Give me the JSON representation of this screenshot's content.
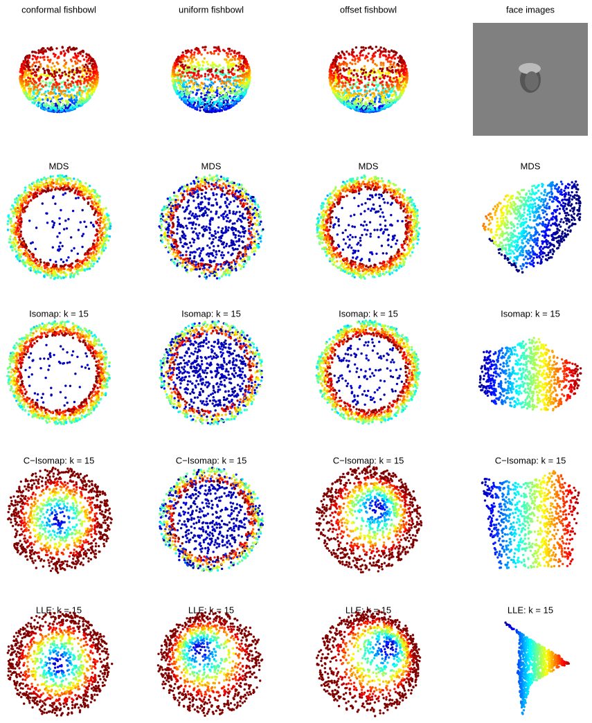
{
  "panels": [
    "conformal fishbowl",
    "uniform fishbowl",
    "offset fishbowl",
    "face images",
    "MDS",
    "MDS",
    "MDS",
    "MDS",
    "Isomap: k = 15",
    "Isomap: k = 15",
    "Isomap: k = 15",
    "Isomap: k = 15",
    "C−Isomap: k = 15",
    "C−Isomap: k = 15",
    "C−Isomap: k = 15",
    "C−Isomap: k = 15",
    "LLE: k = 15",
    "LLE: k = 15",
    "LLE: k = 15",
    "LLE: k = 15"
  ]
}
